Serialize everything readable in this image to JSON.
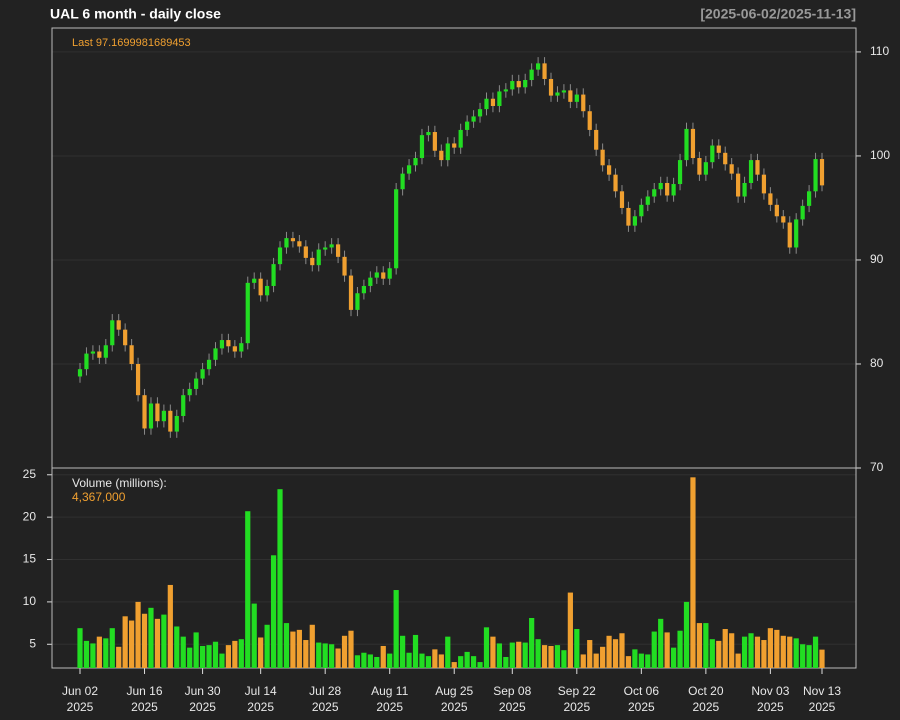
{
  "chart_data": {
    "type": "candlestick",
    "title": "UAL  6 month - daily close",
    "date_range": "[2025-06-02/2025-11-13]",
    "last_label": "Last 97.1699981689453",
    "up_color": "#22dd22",
    "down_color": "#f0a030",
    "x": [
      "2025-06-02",
      "2025-06-03",
      "2025-06-04",
      "2025-06-05",
      "2025-06-06",
      "2025-06-09",
      "2025-06-10",
      "2025-06-11",
      "2025-06-12",
      "2025-06-13",
      "2025-06-16",
      "2025-06-17",
      "2025-06-18",
      "2025-06-20",
      "2025-06-23",
      "2025-06-24",
      "2025-06-25",
      "2025-06-26",
      "2025-06-27",
      "2025-06-30",
      "2025-07-01",
      "2025-07-02",
      "2025-07-03",
      "2025-07-07",
      "2025-07-08",
      "2025-07-09",
      "2025-07-10",
      "2025-07-11",
      "2025-07-14",
      "2025-07-15",
      "2025-07-16",
      "2025-07-17",
      "2025-07-18",
      "2025-07-21",
      "2025-07-22",
      "2025-07-23",
      "2025-07-24",
      "2025-07-25",
      "2025-07-28",
      "2025-07-29",
      "2025-07-30",
      "2025-07-31",
      "2025-08-01",
      "2025-08-04",
      "2025-08-05",
      "2025-08-06",
      "2025-08-07",
      "2025-08-08",
      "2025-08-11",
      "2025-08-12",
      "2025-08-13",
      "2025-08-14",
      "2025-08-15",
      "2025-08-18",
      "2025-08-19",
      "2025-08-20",
      "2025-08-21",
      "2025-08-22",
      "2025-08-25",
      "2025-08-26",
      "2025-08-27",
      "2025-08-28",
      "2025-08-29",
      "2025-09-02",
      "2025-09-03",
      "2025-09-04",
      "2025-09-05",
      "2025-09-08",
      "2025-09-09",
      "2025-09-10",
      "2025-09-11",
      "2025-09-12",
      "2025-09-15",
      "2025-09-16",
      "2025-09-17",
      "2025-09-18",
      "2025-09-19",
      "2025-09-22",
      "2025-09-23",
      "2025-09-24",
      "2025-09-25",
      "2025-09-26",
      "2025-09-29",
      "2025-09-30",
      "2025-10-01",
      "2025-10-02",
      "2025-10-03",
      "2025-10-06",
      "2025-10-07",
      "2025-10-08",
      "2025-10-09",
      "2025-10-10",
      "2025-10-13",
      "2025-10-14",
      "2025-10-15",
      "2025-10-16",
      "2025-10-17",
      "2025-10-20",
      "2025-10-21",
      "2025-10-22",
      "2025-10-23",
      "2025-10-24",
      "2025-10-27",
      "2025-10-28",
      "2025-10-29",
      "2025-10-30",
      "2025-10-31",
      "2025-11-03",
      "2025-11-04",
      "2025-11-05",
      "2025-11-06",
      "2025-11-07",
      "2025-11-10",
      "2025-11-11",
      "2025-11-12",
      "2025-11-13"
    ],
    "open": [
      78.8,
      79.5,
      81,
      81.2,
      80.6,
      81.8,
      84.2,
      83.3,
      81.8,
      80,
      77,
      73.8,
      76.2,
      74.5,
      75.5,
      73.5,
      75,
      77,
      77.6,
      78.6,
      79.5,
      80.4,
      81.5,
      82.3,
      81.7,
      81.2,
      82,
      87.8,
      88.2,
      86.6,
      87.5,
      89.6,
      91.2,
      92.1,
      91.8,
      91.3,
      90.2,
      89.5,
      91,
      91.2,
      91.5,
      90.3,
      88.5,
      85.2,
      86.8,
      87.5,
      88.3,
      88.8,
      88.2,
      89.2,
      96.8,
      98.3,
      99.1,
      99.8,
      102,
      102.3,
      100.5,
      99.6,
      101.2,
      100.8,
      102.5,
      103.3,
      103.8,
      104.5,
      105.5,
      104.8,
      106.2,
      106.4,
      107.2,
      106.6,
      107.3,
      108.3,
      108.9,
      107.4,
      105.8,
      106.1,
      106.3,
      105.2,
      105.9,
      104.3,
      102.5,
      100.6,
      99.1,
      98.2,
      96.6,
      95,
      93.3,
      94.2,
      95.3,
      96.1,
      96.8,
      97.4,
      96.2,
      97.3,
      99.6,
      102.6,
      99.8,
      98.2,
      99.4,
      101,
      100.3,
      99.2,
      98.3,
      96.1,
      97.4,
      99.6,
      98.2,
      96.4,
      95.3,
      94.2,
      93.6,
      91.2,
      93.9,
      95.2,
      96.6,
      99.7
    ],
    "high": [
      80.1,
      81.6,
      81.8,
      81.8,
      82.4,
      84.8,
      84.8,
      83.9,
      82.4,
      80.6,
      77.6,
      76.8,
      76.8,
      76.1,
      76.1,
      75.6,
      77.6,
      78.2,
      79.2,
      80.1,
      81.0,
      82.1,
      82.9,
      82.9,
      82.3,
      82.6,
      88.4,
      88.8,
      88.8,
      88.1,
      90.2,
      91.8,
      92.7,
      92.7,
      92.4,
      91.9,
      90.8,
      91.6,
      91.8,
      92.1,
      92.1,
      90.9,
      89.1,
      87.4,
      88.1,
      88.9,
      89.4,
      89.4,
      89.8,
      97.4,
      98.9,
      99.7,
      100.4,
      102.6,
      102.9,
      102.9,
      101.1,
      101.8,
      101.8,
      103.1,
      103.9,
      104.4,
      105.1,
      106.1,
      106.1,
      106.8,
      107.0,
      107.8,
      107.8,
      107.9,
      108.9,
      109.5,
      109.5,
      108.0,
      106.7,
      106.9,
      106.9,
      106.5,
      106.5,
      104.9,
      103.1,
      101.2,
      99.7,
      98.8,
      97.2,
      95.6,
      94.8,
      95.9,
      96.7,
      97.4,
      98.0,
      98.0,
      97.9,
      100.2,
      103.2,
      103.2,
      100.4,
      100.0,
      101.6,
      101.6,
      100.9,
      99.8,
      98.9,
      98.0,
      100.2,
      100.2,
      98.8,
      97.0,
      95.9,
      94.8,
      94.2,
      94.5,
      95.8,
      97.2,
      100.3,
      100.3
    ],
    "low": [
      78.2,
      78.9,
      80.4,
      80.0,
      80.0,
      81.2,
      82.7,
      81.2,
      79.4,
      76.4,
      73.2,
      73.2,
      73.9,
      73.9,
      72.9,
      72.9,
      74.4,
      76.4,
      77.0,
      78.0,
      78.9,
      79.8,
      80.9,
      81.1,
      80.6,
      80.6,
      81.4,
      87.2,
      86.0,
      86.0,
      86.9,
      89.0,
      90.6,
      91.2,
      90.7,
      89.6,
      88.9,
      88.9,
      90.4,
      90.6,
      89.7,
      87.9,
      84.6,
      84.6,
      86.2,
      86.9,
      87.7,
      87.6,
      87.6,
      88.6,
      96.2,
      97.7,
      98.5,
      99.2,
      101.4,
      99.9,
      99.0,
      99.0,
      100.2,
      100.2,
      101.9,
      102.7,
      103.2,
      103.9,
      104.2,
      104.2,
      105.6,
      105.8,
      106.0,
      106.0,
      106.7,
      107.7,
      106.8,
      105.2,
      105.2,
      105.5,
      104.6,
      104.6,
      103.7,
      101.9,
      100.0,
      98.5,
      97.6,
      96.0,
      94.4,
      92.7,
      92.7,
      93.6,
      94.7,
      95.5,
      96.2,
      95.6,
      95.6,
      96.7,
      99.0,
      99.2,
      97.6,
      97.6,
      98.8,
      99.7,
      98.6,
      97.7,
      95.5,
      95.5,
      96.8,
      97.6,
      95.8,
      94.7,
      93.6,
      93.0,
      90.6,
      90.6,
      93.3,
      94.6,
      96.0,
      96.6
    ],
    "close": [
      79.5,
      81,
      81.2,
      80.6,
      81.8,
      84.2,
      83.3,
      81.8,
      80,
      77,
      73.8,
      76.2,
      74.5,
      75.5,
      73.5,
      75,
      77,
      77.6,
      78.6,
      79.5,
      80.4,
      81.5,
      82.3,
      81.7,
      81.2,
      82,
      87.8,
      88.2,
      86.6,
      87.5,
      89.6,
      91.2,
      92.1,
      91.8,
      91.3,
      90.2,
      89.5,
      91,
      91.2,
      91.5,
      90.3,
      88.5,
      85.2,
      86.8,
      87.5,
      88.3,
      88.8,
      88.2,
      89.2,
      96.8,
      98.3,
      99.1,
      99.8,
      102,
      102.3,
      100.5,
      99.6,
      101.2,
      100.8,
      102.5,
      103.3,
      103.8,
      104.5,
      105.5,
      104.8,
      106.2,
      106.4,
      107.2,
      106.6,
      107.3,
      108.3,
      108.9,
      107.4,
      105.8,
      106.1,
      106.3,
      105.2,
      105.9,
      104.3,
      102.5,
      100.6,
      99.1,
      98.2,
      96.6,
      95,
      93.3,
      94.2,
      95.3,
      96.1,
      96.8,
      97.4,
      96.2,
      97.3,
      99.6,
      102.6,
      99.8,
      98.2,
      99.4,
      101,
      100.3,
      99.2,
      98.3,
      96.1,
      97.4,
      99.6,
      98.2,
      96.4,
      95.3,
      94.2,
      93.6,
      91.2,
      93.9,
      95.2,
      96.6,
      99.7,
      97.17
    ],
    "ylim": [
      70,
      112.3
    ],
    "yticks": [
      70,
      80,
      90,
      100,
      110
    ],
    "volume": {
      "name": "Volume (millions):",
      "last_label": "4,367,000",
      "values": [
        6.9,
        5.4,
        5.1,
        5.9,
        5.7,
        6.9,
        4.7,
        8.3,
        7.8,
        10,
        8.6,
        9.3,
        8,
        8.5,
        12,
        7.1,
        5.9,
        4.6,
        6.4,
        4.8,
        4.9,
        5.3,
        3.9,
        4.9,
        5.4,
        5.6,
        20.7,
        9.8,
        5.8,
        7.3,
        15.5,
        23.3,
        7.5,
        6.5,
        6.7,
        5.5,
        7.3,
        5.2,
        5.1,
        5,
        4.5,
        6,
        6.6,
        3.7,
        4,
        3.8,
        3.5,
        4.8,
        3.9,
        11.4,
        6,
        4,
        6.1,
        3.9,
        3.6,
        4.4,
        3.8,
        5.9,
        2.9,
        3.6,
        4.1,
        3.6,
        2.9,
        7,
        5.9,
        5.1,
        3.5,
        5.2,
        5.3,
        5.2,
        8.1,
        5.6,
        4.9,
        4.8,
        4.9,
        4.3,
        11.1,
        6.8,
        3.8,
        5.5,
        3.9,
        4.7,
        6,
        5.6,
        6.3,
        3.6,
        4.4,
        3.9,
        3.8,
        6.5,
        8,
        6.4,
        4.6,
        6.6,
        10,
        24.7,
        7.5,
        7.5,
        5.6,
        5.4,
        6.8,
        6.3,
        3.9,
        5.9,
        6.3,
        5.9,
        5.5,
        6.9,
        6.7,
        6,
        5.9,
        5.7,
        5,
        4.9,
        5.9,
        4.367
      ],
      "ylim": [
        2.2,
        25.8
      ],
      "yticks": [
        5,
        10,
        15,
        20,
        25
      ]
    },
    "xticks": [
      {
        "value": "2025-06-02",
        "label": "Jun 02\n2025"
      },
      {
        "value": "2025-06-16",
        "label": "Jun 16\n2025"
      },
      {
        "value": "2025-06-30",
        "label": "Jun 30\n2025"
      },
      {
        "value": "2025-07-14",
        "label": "Jul 14\n2025"
      },
      {
        "value": "2025-07-28",
        "label": "Jul 28\n2025"
      },
      {
        "value": "2025-08-11",
        "label": "Aug 11\n2025"
      },
      {
        "value": "2025-08-25",
        "label": "Aug 25\n2025"
      },
      {
        "value": "2025-09-08",
        "label": "Sep 08\n2025"
      },
      {
        "value": "2025-09-22",
        "label": "Sep 22\n2025"
      },
      {
        "value": "2025-10-06",
        "label": "Oct 06\n2025"
      },
      {
        "value": "2025-10-20",
        "label": "Oct 20\n2025"
      },
      {
        "value": "2025-11-03",
        "label": "Nov 03\n2025"
      },
      {
        "value": "2025-11-13",
        "label": "Nov 13\n2025"
      }
    ],
    "grid": true
  }
}
